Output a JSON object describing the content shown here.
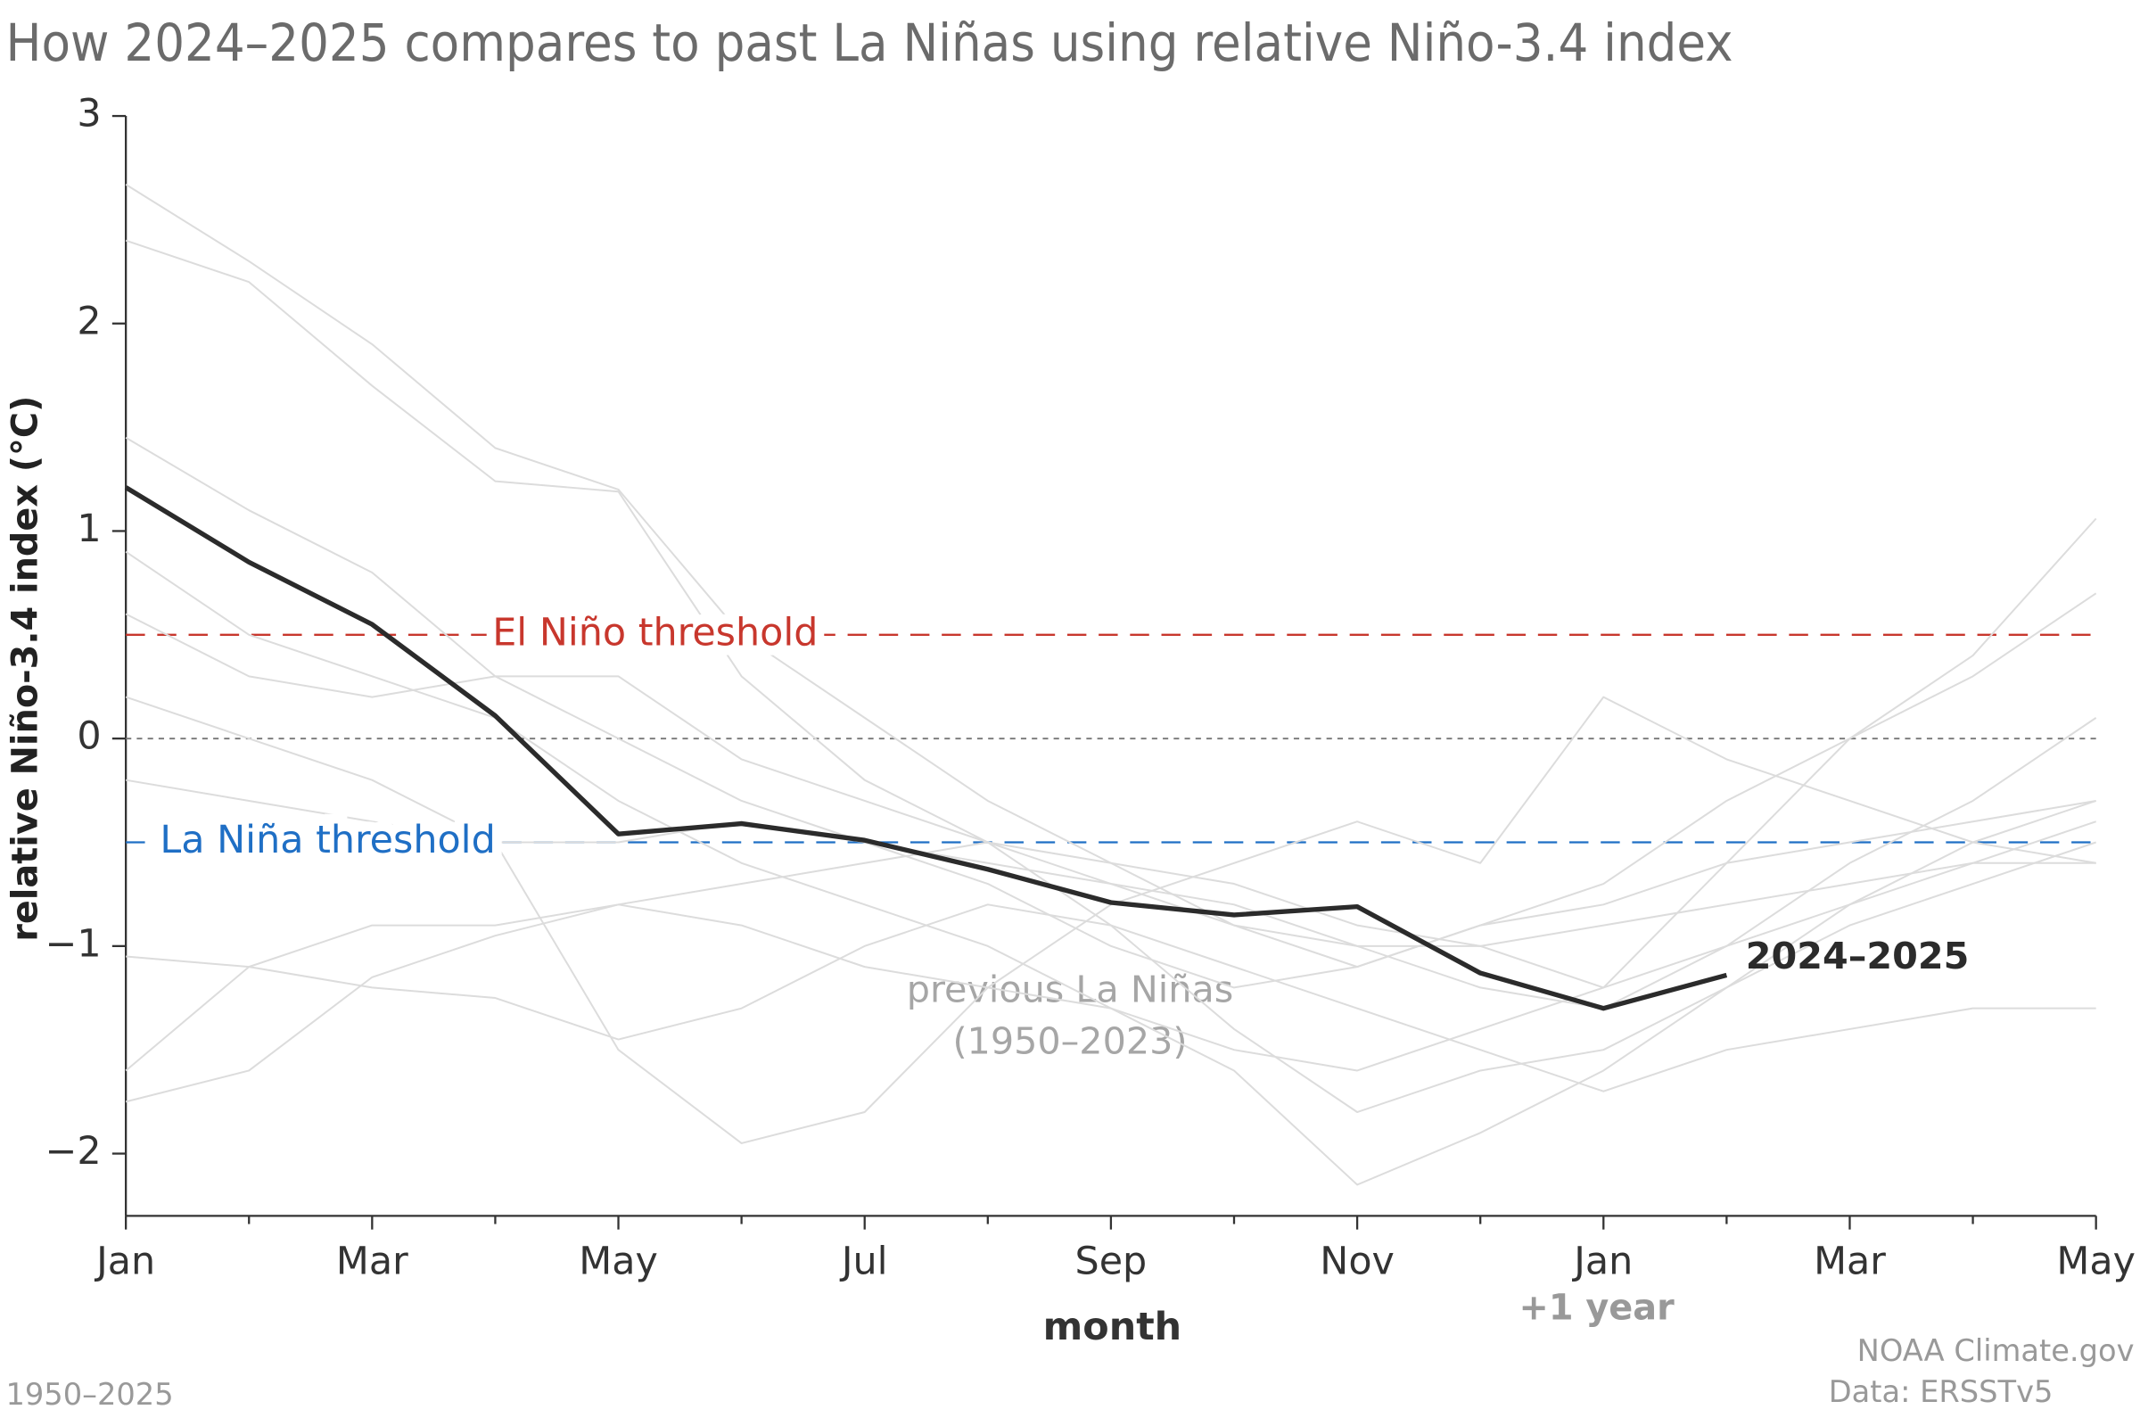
{
  "chart_data": {
    "type": "line",
    "title": "How 2024–2025 compares to past La Niñas using relative Niño-3.4 index",
    "y_label": "relative Niño-3.4 index (°C)",
    "x_label": "month",
    "x_note": "+1 year",
    "annotation": [
      "previous La Niñas",
      "(1950–2023)"
    ],
    "footer_left": "1950–2025",
    "footer_right": [
      "NOAA Climate.gov",
      "Data: ERSSTv5"
    ],
    "categories": [
      "Jan",
      null,
      "Mar",
      null,
      "May",
      null,
      "Jul",
      null,
      "Sep",
      null,
      "Nov",
      null,
      "Jan",
      null,
      "Mar",
      null,
      "May"
    ],
    "ylim": [
      -2.3,
      3
    ],
    "yticks": [
      {
        "value": -2,
        "label": "−2"
      },
      {
        "value": -1,
        "label": "−1"
      },
      0,
      1,
      2,
      3
    ],
    "baseline": 0,
    "thresholds": [
      {
        "label": "El Niño threshold",
        "value": 0.5,
        "color": "#c8372d"
      },
      {
        "label": "La Niña threshold",
        "value": -0.5,
        "color": "#1f6fc5"
      }
    ],
    "series": [
      {
        "color": "#dcdcdc",
        "values": [
          2.67,
          2.3,
          1.9,
          1.4,
          1.2,
          0.5,
          0.1,
          -0.3,
          -0.6,
          -0.9,
          -1.0,
          -1.2,
          -1.3,
          -1.0,
          -0.6,
          -0.3,
          0.1
        ]
      },
      {
        "color": "#dcdcdc",
        "values": [
          2.4,
          2.2,
          1.7,
          1.24,
          1.19,
          0.3,
          -0.2,
          -0.5,
          -0.9,
          -1.4,
          -1.8,
          -1.6,
          -1.5,
          -1.2,
          -0.8,
          -0.5,
          -0.3
        ]
      },
      {
        "color": "#dcdcdc",
        "values": [
          1.45,
          1.1,
          0.8,
          0.3,
          0.0,
          -0.3,
          -0.5,
          -0.7,
          -1.0,
          -1.2,
          -1.1,
          -0.9,
          -0.7,
          -0.3,
          0.0,
          0.3,
          0.7
        ]
      },
      {
        "color": "#dcdcdc",
        "values": [
          0.9,
          0.5,
          0.3,
          0.1,
          -0.3,
          -0.6,
          -0.8,
          -1.0,
          -1.3,
          -1.6,
          -2.15,
          -1.9,
          -1.6,
          -1.2,
          -0.9,
          -0.7,
          -0.5
        ]
      },
      {
        "color": "#dcdcdc",
        "values": [
          -1.6,
          -1.1,
          -0.9,
          -0.9,
          -0.8,
          -0.7,
          -0.6,
          -0.5,
          -0.7,
          -0.9,
          -1.1,
          -0.9,
          -0.8,
          -0.6,
          -0.5,
          -0.4,
          -0.3
        ]
      },
      {
        "color": "#dcdcdc",
        "values": [
          -1.75,
          -1.6,
          -1.15,
          -0.95,
          -0.8,
          -0.9,
          -1.1,
          -1.2,
          -1.3,
          -1.5,
          -1.6,
          -1.4,
          -1.2,
          -1.0,
          -0.8,
          -0.6,
          -0.4
        ]
      },
      {
        "color": "#dcdcdc",
        "values": [
          0.2,
          0.0,
          -0.2,
          -0.5,
          -1.5,
          -1.95,
          -1.8,
          -1.2,
          -0.8,
          -0.6,
          -0.4,
          -0.6,
          0.2,
          -0.1,
          -0.3,
          -0.5,
          -0.6
        ]
      },
      {
        "color": "#dcdcdc",
        "values": [
          -1.05,
          -1.1,
          -1.2,
          -1.25,
          -1.45,
          -1.3,
          -1.0,
          -0.8,
          -0.9,
          -1.1,
          -1.3,
          -1.5,
          -1.7,
          -1.5,
          -1.4,
          -1.3,
          -1.3
        ]
      },
      {
        "color": "#dcdcdc",
        "values": [
          -0.2,
          -0.3,
          -0.4,
          -0.5,
          -0.5,
          -0.4,
          -0.5,
          -0.6,
          -0.7,
          -0.8,
          -1.0,
          -1.0,
          -0.9,
          -0.8,
          -0.7,
          -0.6,
          -0.6
        ]
      },
      {
        "color": "#dcdcdc",
        "values": [
          0.6,
          0.3,
          0.2,
          0.3,
          0.3,
          -0.1,
          -0.3,
          -0.5,
          -0.6,
          -0.7,
          -0.9,
          -1.0,
          -1.2,
          -0.6,
          0.0,
          0.4,
          1.06
        ]
      },
      {
        "name": "2024–2025",
        "color": "#2b2b2b",
        "values": [
          1.21,
          0.85,
          0.55,
          0.11,
          -0.46,
          -0.41,
          -0.49,
          -0.63,
          -0.79,
          -0.85,
          -0.81,
          -1.13,
          -1.3,
          -1.14,
          null,
          null,
          null
        ]
      }
    ]
  }
}
